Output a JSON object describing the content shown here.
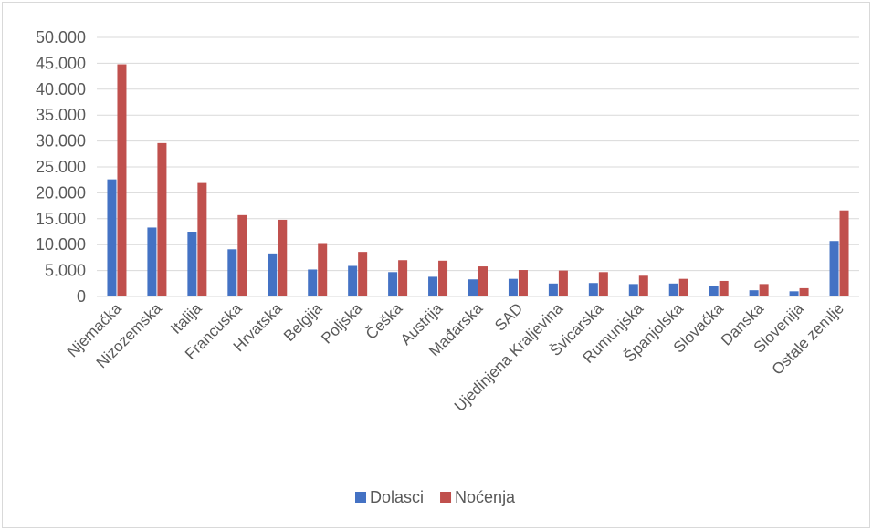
{
  "chart_data": {
    "type": "bar",
    "title": "",
    "xlabel": "",
    "ylabel": "",
    "ylim": [
      0,
      50000
    ],
    "yticks": [
      0,
      5000,
      10000,
      15000,
      20000,
      25000,
      30000,
      35000,
      40000,
      45000,
      50000
    ],
    "ytick_labels": [
      "0",
      "5.000",
      "10.000",
      "15.000",
      "20.000",
      "25.000",
      "30.000",
      "35.000",
      "40.000",
      "45.000",
      "50.000"
    ],
    "grid": true,
    "legend_position": "bottom",
    "categories": [
      "Njemačka",
      "Nizozemska",
      "Italija",
      "Francuska",
      "Hrvatska",
      "Belgija",
      "Poljska",
      "Češka",
      "Austrija",
      "Mađarska",
      "SAD",
      "Ujedinjena Kraljevina",
      "Švicarska",
      "Rumunjska",
      "Španjolska",
      "Slovačka",
      "Danska",
      "Slovenija",
      "Ostale zemlje"
    ],
    "series": [
      {
        "name": "Dolasci",
        "color": "#4472c4",
        "values": [
          22600,
          13300,
          12500,
          9100,
          8300,
          5200,
          5900,
          4700,
          3800,
          3300,
          3400,
          2500,
          2600,
          2400,
          2500,
          2000,
          1200,
          1000,
          10700
        ]
      },
      {
        "name": "Noćenja",
        "color": "#c0504d",
        "values": [
          44800,
          29600,
          21900,
          15700,
          14800,
          10300,
          8600,
          7000,
          6900,
          5800,
          5100,
          5000,
          4700,
          4000,
          3400,
          3000,
          2400,
          1600,
          16600
        ]
      }
    ]
  }
}
